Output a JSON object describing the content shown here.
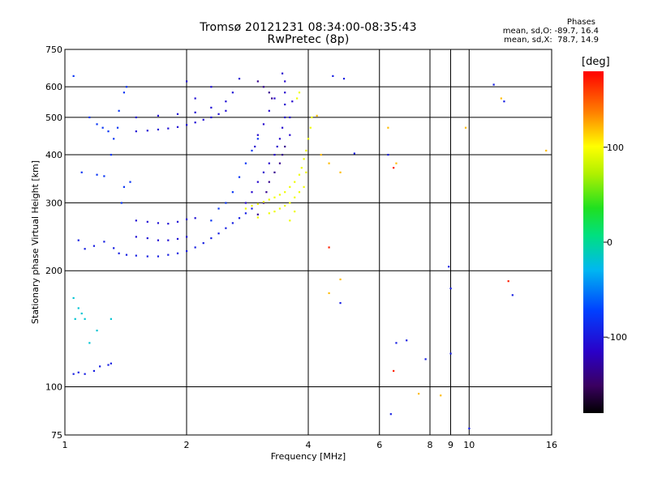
{
  "title": "Tromsø 20121231 08:34:00-08:35:43",
  "subtitle": "RwPretec (8p)",
  "stats": {
    "heading": "Phases",
    "o_mode": "mean, sd,O: -89.7, 16.4",
    "x_mode": "mean, sd,X:  78.7, 14.9"
  },
  "colorbar": {
    "label": "[deg]",
    "range": [
      -180,
      180
    ],
    "ticks": [
      100,
      0,
      -100
    ],
    "tick_labels": [
      "100",
      "0",
      "-100"
    ]
  },
  "chart_data": {
    "type": "scatter",
    "xlabel": "Frequency [MHz]",
    "ylabel": "Stationary phase Virtual Height [km]",
    "xscale": "log",
    "yscale": "log",
    "xlim": [
      1,
      16
    ],
    "ylim": [
      75,
      750
    ],
    "xticks": [
      1,
      2,
      4,
      6,
      8,
      9,
      10,
      16
    ],
    "xtick_labels": [
      "1",
      "2",
      "4",
      "6",
      "8",
      "9",
      "10",
      "16"
    ],
    "yticks": [
      75,
      100,
      200,
      300,
      400,
      500,
      600,
      750
    ],
    "ytick_labels": [
      "75",
      "100",
      "200",
      "300",
      "400",
      "500",
      "600",
      "750"
    ],
    "grid": true,
    "series": [
      {
        "key": "o_trace_low",
        "phase": -95,
        "points": [
          [
            1.05,
            108
          ],
          [
            1.08,
            109
          ],
          [
            1.12,
            108
          ],
          [
            1.18,
            110
          ],
          [
            1.22,
            113
          ],
          [
            1.28,
            114
          ],
          [
            1.3,
            115
          ],
          [
            1.08,
            240
          ],
          [
            1.12,
            228
          ],
          [
            1.18,
            232
          ],
          [
            1.25,
            238
          ],
          [
            1.32,
            229
          ],
          [
            1.36,
            222
          ],
          [
            1.42,
            220
          ],
          [
            1.5,
            219
          ],
          [
            1.6,
            218
          ],
          [
            1.7,
            218
          ],
          [
            1.8,
            220
          ],
          [
            1.9,
            222
          ],
          [
            2.0,
            225
          ],
          [
            2.1,
            230
          ],
          [
            2.2,
            236
          ],
          [
            2.3,
            243
          ],
          [
            2.4,
            250
          ],
          [
            2.5,
            258
          ],
          [
            2.6,
            266
          ],
          [
            2.7,
            274
          ],
          [
            2.8,
            282
          ],
          [
            2.9,
            290
          ]
        ]
      },
      {
        "key": "o_trace_high",
        "phase": -105,
        "points": [
          [
            1.5,
            245
          ],
          [
            1.6,
            243
          ],
          [
            1.7,
            240
          ],
          [
            1.8,
            240
          ],
          [
            1.9,
            242
          ],
          [
            2.0,
            245
          ],
          [
            1.5,
            270
          ],
          [
            1.6,
            268
          ],
          [
            1.7,
            266
          ],
          [
            1.8,
            265
          ],
          [
            1.9,
            268
          ],
          [
            2.0,
            272
          ],
          [
            2.1,
            274
          ],
          [
            1.5,
            460
          ],
          [
            1.6,
            462
          ],
          [
            1.7,
            465
          ],
          [
            1.8,
            468
          ],
          [
            1.9,
            472
          ],
          [
            2.0,
            478
          ],
          [
            2.1,
            485
          ],
          [
            2.2,
            493
          ],
          [
            2.3,
            500
          ],
          [
            2.4,
            510
          ],
          [
            2.5,
            520
          ],
          [
            1.5,
            500
          ],
          [
            1.7,
            505
          ],
          [
            1.9,
            510
          ],
          [
            2.1,
            515
          ],
          [
            2.3,
            530
          ],
          [
            2.5,
            550
          ],
          [
            2.6,
            580
          ],
          [
            2.7,
            630
          ],
          [
            2.3,
            600
          ],
          [
            2.1,
            560
          ],
          [
            2.0,
            620
          ]
        ]
      },
      {
        "key": "o_trace_mid",
        "phase": -80,
        "points": [
          [
            1.1,
            360
          ],
          [
            1.2,
            355
          ],
          [
            1.25,
            352
          ],
          [
            1.3,
            400
          ],
          [
            1.32,
            440
          ],
          [
            1.35,
            470
          ],
          [
            1.36,
            520
          ],
          [
            1.38,
            300
          ],
          [
            1.4,
            330
          ],
          [
            1.45,
            340
          ],
          [
            1.2,
            480
          ],
          [
            1.24,
            470
          ],
          [
            1.28,
            460
          ],
          [
            1.4,
            580
          ],
          [
            1.42,
            600
          ],
          [
            1.15,
            500
          ],
          [
            1.05,
            640
          ],
          [
            2.3,
            270
          ],
          [
            2.4,
            290
          ],
          [
            2.5,
            300
          ],
          [
            2.6,
            320
          ],
          [
            2.7,
            350
          ],
          [
            2.8,
            380
          ],
          [
            2.9,
            410
          ],
          [
            3.0,
            440
          ]
        ]
      },
      {
        "key": "o_trace_dense",
        "phase": -110,
        "points": [
          [
            2.8,
            300
          ],
          [
            2.9,
            320
          ],
          [
            3.0,
            340
          ],
          [
            3.1,
            360
          ],
          [
            3.2,
            380
          ],
          [
            3.3,
            400
          ],
          [
            3.35,
            420
          ],
          [
            3.4,
            440
          ],
          [
            3.45,
            470
          ],
          [
            3.5,
            500
          ],
          [
            3.5,
            540
          ],
          [
            3.5,
            580
          ],
          [
            3.5,
            620
          ],
          [
            3.45,
            650
          ],
          [
            3.3,
            560
          ],
          [
            3.2,
            520
          ],
          [
            3.1,
            480
          ],
          [
            3.0,
            450
          ],
          [
            2.95,
            420
          ],
          [
            3.6,
            450
          ],
          [
            3.6,
            500
          ],
          [
            3.65,
            550
          ]
        ]
      },
      {
        "key": "o_trace_violet",
        "phase": -135,
        "points": [
          [
            3.0,
            280
          ],
          [
            3.1,
            300
          ],
          [
            3.15,
            320
          ],
          [
            3.2,
            340
          ],
          [
            3.3,
            360
          ],
          [
            3.4,
            380
          ],
          [
            3.45,
            400
          ],
          [
            3.5,
            420
          ],
          [
            3.0,
            620
          ],
          [
            3.1,
            600
          ],
          [
            3.2,
            580
          ],
          [
            3.25,
            560
          ]
        ]
      },
      {
        "key": "x_trace",
        "phase": 95,
        "points": [
          [
            2.8,
            290
          ],
          [
            2.9,
            295
          ],
          [
            3.0,
            298
          ],
          [
            3.1,
            302
          ],
          [
            3.2,
            306
          ],
          [
            3.3,
            310
          ],
          [
            3.4,
            315
          ],
          [
            3.5,
            320
          ],
          [
            3.6,
            330
          ],
          [
            3.7,
            340
          ],
          [
            3.8,
            355
          ],
          [
            3.85,
            370
          ],
          [
            3.9,
            390
          ],
          [
            3.95,
            410
          ],
          [
            4.0,
            440
          ],
          [
            4.05,
            470
          ],
          [
            4.08,
            500
          ],
          [
            3.8,
            320
          ],
          [
            3.7,
            310
          ],
          [
            3.6,
            300
          ],
          [
            3.5,
            295
          ],
          [
            3.4,
            290
          ],
          [
            3.3,
            285
          ],
          [
            3.2,
            282
          ],
          [
            3.0,
            275
          ],
          [
            3.6,
            270
          ],
          [
            3.7,
            285
          ],
          [
            3.9,
            330
          ],
          [
            3.95,
            360
          ],
          [
            3.75,
            560
          ],
          [
            3.8,
            580
          ]
        ]
      },
      {
        "key": "scattered",
        "phase": 120,
        "points": [
          [
            4.3,
            400
          ],
          [
            4.5,
            380
          ],
          [
            4.8,
            360
          ],
          [
            6.3,
            470
          ],
          [
            6.6,
            380
          ],
          [
            7.5,
            96
          ],
          [
            8.5,
            95
          ],
          [
            9.8,
            470
          ],
          [
            12.0,
            560
          ],
          [
            4.5,
            175
          ],
          [
            4.8,
            190
          ],
          [
            15.5,
            410
          ],
          [
            4.2,
            505
          ]
        ]
      },
      {
        "key": "scattered_red",
        "phase": 170,
        "points": [
          [
            4.5,
            230
          ],
          [
            12.5,
            188
          ],
          [
            6.5,
            110
          ],
          [
            6.5,
            370
          ]
        ]
      },
      {
        "key": "scattered_blue",
        "phase": -95,
        "points": [
          [
            4.8,
            165
          ],
          [
            6.4,
            85
          ],
          [
            6.6,
            130
          ],
          [
            7.0,
            132
          ],
          [
            7.8,
            118
          ],
          [
            8.9,
            205
          ],
          [
            9.0,
            180
          ],
          [
            9.0,
            122
          ],
          [
            11.5,
            608
          ],
          [
            12.8,
            173
          ],
          [
            12.2,
            550
          ],
          [
            10.0,
            78
          ],
          [
            4.9,
            630
          ],
          [
            4.6,
            640
          ],
          [
            5.2,
            403
          ],
          [
            6.3,
            400
          ]
        ]
      },
      {
        "key": "scattered_cyan",
        "phase": -20,
        "points": [
          [
            1.05,
            170
          ],
          [
            1.08,
            160
          ],
          [
            1.1,
            155
          ],
          [
            1.12,
            150
          ],
          [
            1.06,
            150
          ],
          [
            1.15,
            130
          ],
          [
            1.2,
            140
          ],
          [
            1.3,
            150
          ]
        ]
      }
    ]
  }
}
